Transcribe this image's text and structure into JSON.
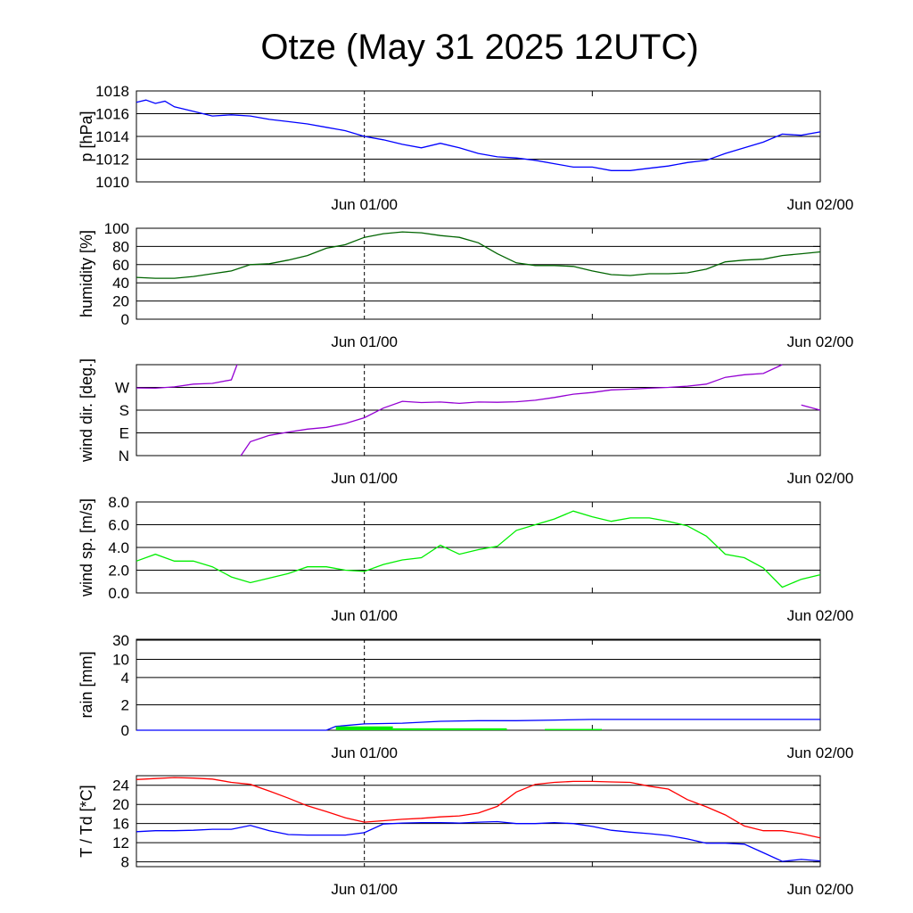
{
  "title": "Otze (May 31 2025 12UTC)",
  "chart_data": [
    {
      "type": "line",
      "ylabel": "p [hPa]",
      "ylim": [
        1010,
        1018
      ],
      "yticks": [
        "1010",
        "1012",
        "1014",
        "1016",
        "1018"
      ],
      "x_tick_labels": [
        "Jun 01/00",
        "Jun 02/00"
      ],
      "series": [
        {
          "color": "#0000ff",
          "x": [
            0,
            0.5,
            1,
            1.5,
            2,
            3,
            4,
            5,
            6,
            7,
            8,
            9,
            10,
            11,
            12,
            13,
            14,
            15,
            16,
            17,
            18,
            19,
            20,
            21,
            22,
            23,
            24,
            25,
            26,
            27,
            28,
            29,
            30,
            31,
            32,
            33,
            34,
            35,
            36
          ],
          "y": [
            1017.0,
            1017.2,
            1016.9,
            1017.1,
            1016.6,
            1016.2,
            1015.8,
            1015.9,
            1015.8,
            1015.5,
            1015.3,
            1015.1,
            1014.8,
            1014.5,
            1014.0,
            1013.7,
            1013.3,
            1013.0,
            1013.4,
            1013.0,
            1012.5,
            1012.2,
            1012.1,
            1011.9,
            1011.6,
            1011.3,
            1011.3,
            1011.0,
            1011.0,
            1011.2,
            1011.4,
            1011.7,
            1011.9,
            1012.5,
            1013.0,
            1013.5,
            1014.2,
            1014.1,
            1014.4
          ]
        }
      ]
    },
    {
      "type": "line",
      "ylabel": "humidity [%]",
      "ylim": [
        0,
        100
      ],
      "yticks": [
        "0",
        "20",
        "40",
        "60",
        "80",
        "100"
      ],
      "x_tick_labels": [
        "Jun 01/00",
        "Jun 02/00"
      ],
      "series": [
        {
          "color": "#006400",
          "x": [
            0,
            1,
            2,
            3,
            4,
            5,
            6,
            7,
            8,
            9,
            10,
            11,
            12,
            13,
            14,
            15,
            16,
            17,
            18,
            19,
            20,
            21,
            22,
            23,
            24,
            25,
            26,
            27,
            28,
            29,
            30,
            31,
            32,
            33,
            34,
            35,
            36
          ],
          "y": [
            46,
            45,
            45,
            47,
            50,
            53,
            60,
            61,
            65,
            70,
            78,
            82,
            90,
            94,
            96,
            95,
            92,
            90,
            84,
            72,
            62,
            59,
            59,
            58,
            53,
            49,
            48,
            50,
            50,
            51,
            55,
            63,
            65,
            66,
            70,
            72,
            74
          ]
        }
      ]
    },
    {
      "type": "line",
      "ylabel": "wind dir. [deg.]",
      "ylim": [
        0,
        360
      ],
      "yticks": [
        "N",
        "E",
        "S",
        "W"
      ],
      "x_tick_labels": [
        "Jun 01/00",
        "Jun 02/00"
      ],
      "series": [
        {
          "color": "#9400d3",
          "x": [
            0,
            1,
            2,
            3,
            4,
            5,
            5.3,
            5.5,
            6,
            7,
            8,
            9,
            10,
            11,
            12,
            13,
            14,
            15,
            16,
            17,
            18,
            19,
            20,
            21,
            22,
            23,
            24,
            25,
            26,
            27,
            28,
            29,
            30,
            31,
            32,
            33,
            34,
            35,
            36
          ],
          "y": [
            268,
            267,
            272,
            283,
            286,
            300,
            360,
            0,
            55,
            80,
            93,
            105,
            112,
            127,
            150,
            188,
            215,
            210,
            212,
            207,
            212,
            211,
            213,
            219,
            230,
            243,
            250,
            260,
            263,
            267,
            270,
            275,
            283,
            310,
            320,
            325,
            360,
            200,
            180
          ]
        }
      ]
    },
    {
      "type": "line",
      "ylabel": "wind sp. [m/s]",
      "ylim": [
        0,
        8
      ],
      "yticks": [
        "0.0",
        "2.0",
        "4.0",
        "6.0",
        "8.0"
      ],
      "x_tick_labels": [
        "Jun 01/00",
        "Jun 02/00"
      ],
      "series": [
        {
          "color": "#00ee00",
          "x": [
            0,
            1,
            2,
            3,
            4,
            5,
            6,
            7,
            8,
            9,
            10,
            11,
            12,
            13,
            14,
            15,
            16,
            17,
            18,
            19,
            20,
            21,
            22,
            23,
            24,
            25,
            26,
            27,
            28,
            29,
            30,
            31,
            32,
            33,
            34,
            35,
            36
          ],
          "y": [
            2.8,
            3.4,
            2.8,
            2.8,
            2.3,
            1.4,
            0.9,
            1.3,
            1.7,
            2.3,
            2.3,
            2.0,
            1.9,
            2.5,
            2.9,
            3.1,
            4.2,
            3.4,
            3.8,
            4.1,
            5.5,
            6.0,
            6.5,
            7.2,
            6.7,
            6.3,
            6.6,
            6.6,
            6.3,
            5.9,
            5.0,
            3.4,
            3.1,
            2.2,
            0.5,
            1.2,
            1.6
          ]
        }
      ]
    },
    {
      "type": "line",
      "ylabel": "rain [mm]",
      "yticks": [
        "0",
        "2",
        "4",
        "10",
        "30"
      ],
      "y_scale": "nonlinear",
      "x_tick_labels": [
        "Jun 01/00",
        "Jun 02/00"
      ],
      "series": [
        {
          "color": "#0000ff",
          "type": "line",
          "x": [
            0,
            10,
            10.5,
            12,
            14,
            16,
            18,
            20,
            22,
            24,
            28,
            32,
            36
          ],
          "y": [
            0,
            0,
            0.3,
            0.5,
            0.55,
            0.7,
            0.75,
            0.75,
            0.8,
            0.85,
            0.85,
            0.85,
            0.85
          ]
        },
        {
          "color": "#00ee00",
          "type": "bar",
          "x": [
            10.5,
            13.5,
            21.5
          ],
          "x_end": [
            13.5,
            19.5,
            24.5
          ],
          "y": [
            0.3,
            0.15,
            0.1
          ]
        }
      ]
    },
    {
      "type": "line",
      "ylabel": "T / Td [*C]",
      "ylim": [
        7,
        26
      ],
      "yticks": [
        "8",
        "12",
        "16",
        "20",
        "24"
      ],
      "x_tick_labels": [
        "Jun 01/00",
        "Jun 02/00"
      ],
      "series": [
        {
          "color": "#ff0000",
          "x": [
            0,
            1,
            2,
            3,
            4,
            5,
            6,
            7,
            8,
            9,
            10,
            11,
            12,
            13,
            14,
            15,
            16,
            17,
            18,
            19,
            20,
            21,
            22,
            23,
            24,
            25,
            26,
            27,
            28,
            29,
            30,
            31,
            32,
            33,
            34,
            35,
            36
          ],
          "y": [
            25.2,
            25.4,
            25.6,
            25.5,
            25.3,
            24.6,
            24.2,
            22.8,
            21.3,
            19.7,
            18.5,
            17.2,
            16.3,
            16.6,
            16.9,
            17.1,
            17.4,
            17.6,
            18.2,
            19.6,
            22.6,
            24.2,
            24.6,
            24.8,
            24.8,
            24.7,
            24.6,
            23.8,
            23.2,
            21.0,
            19.5,
            17.8,
            15.5,
            14.5,
            14.5,
            13.9,
            13.0
          ]
        },
        {
          "color": "#0000ff",
          "x": [
            0,
            1,
            2,
            3,
            4,
            5,
            6,
            7,
            8,
            9,
            10,
            11,
            12,
            13,
            14,
            15,
            16,
            17,
            18,
            19,
            20,
            21,
            22,
            23,
            24,
            25,
            26,
            27,
            28,
            29,
            30,
            31,
            32,
            33,
            34,
            35,
            36
          ],
          "y": [
            14.3,
            14.5,
            14.5,
            14.6,
            14.8,
            14.8,
            15.6,
            14.5,
            13.7,
            13.6,
            13.6,
            13.6,
            14.1,
            15.9,
            16.1,
            16.2,
            16.2,
            16.1,
            16.3,
            16.4,
            16.0,
            16.0,
            16.2,
            16.0,
            15.4,
            14.6,
            14.2,
            13.9,
            13.5,
            12.8,
            11.9,
            11.9,
            11.7,
            9.9,
            8.1,
            8.5,
            8.2
          ]
        }
      ]
    }
  ]
}
